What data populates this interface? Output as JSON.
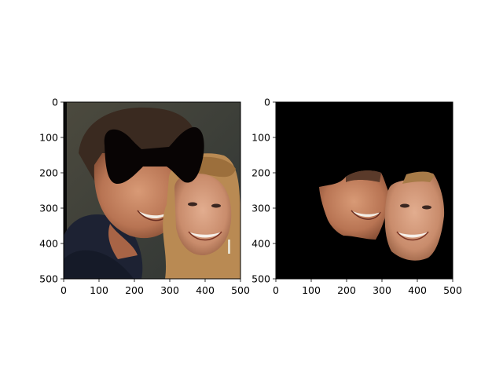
{
  "chart_data": [
    {
      "type": "image",
      "title": "",
      "xlabel": "",
      "ylabel": "",
      "xlim": [
        0,
        500
      ],
      "ylim": [
        500,
        0
      ],
      "xticks": [
        0,
        100,
        200,
        300,
        400,
        500
      ],
      "yticks": [
        0,
        100,
        200,
        300,
        400,
        500
      ],
      "content": "photo of two smiling people with a black bow-tie shaped mask over the eyes region"
    },
    {
      "type": "image",
      "title": "",
      "xlabel": "",
      "ylabel": "",
      "xlim": [
        0,
        500
      ],
      "ylim": [
        500,
        0
      ],
      "xticks": [
        0,
        100,
        200,
        300,
        400,
        500
      ],
      "yticks": [
        0,
        100,
        200,
        300,
        400,
        500
      ],
      "content": "segmented face regions on a black background"
    }
  ],
  "colors": {
    "mask": "#080404",
    "background_black": "#000000",
    "skin": "#c98865",
    "hair_dark": "#3b2b22",
    "hair_blond": "#b88a52"
  }
}
